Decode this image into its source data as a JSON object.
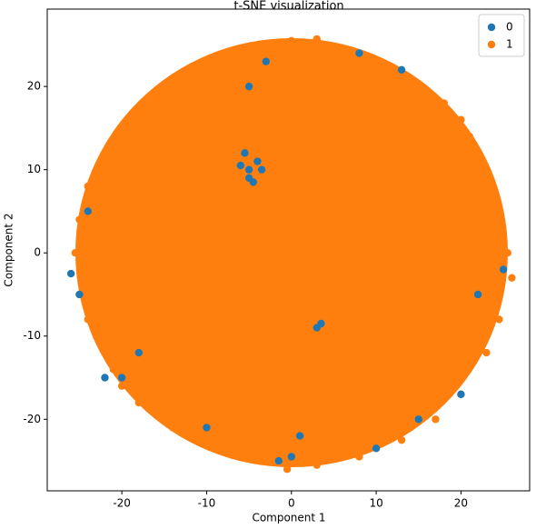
{
  "chart_data": {
    "type": "scatter",
    "title": "t-SNE visualization",
    "x_label": "Component 1",
    "y_label": "Component 2",
    "xlim": [
      -28.8,
      28.1
    ],
    "ylim": [
      -28.6,
      29.3
    ],
    "xticks": [
      -20,
      -10,
      0,
      10,
      20
    ],
    "yticks": [
      -20,
      -10,
      0,
      10,
      20
    ],
    "legend": "upper right",
    "series": [
      {
        "name": "0",
        "color": "#1f77b4",
        "x": [
          -5,
          -4,
          -6,
          -5,
          -3.5,
          -5.5,
          -4.5,
          3,
          3.5,
          -26,
          -25,
          -22,
          -20,
          0,
          -1.5,
          10,
          15,
          25,
          20,
          13,
          8,
          -3,
          -5,
          1,
          -10,
          -18,
          -24,
          22
        ],
        "y": [
          10,
          11,
          10.5,
          9,
          10,
          12,
          8.5,
          -9,
          -8.5,
          -2.5,
          -5,
          -15,
          -15,
          -24.5,
          -25,
          -23.5,
          -20,
          -2,
          -17,
          22,
          24,
          23,
          20,
          -22,
          -21,
          -12,
          5,
          -5
        ]
      },
      {
        "name": "1",
        "color": "#ff7f0e",
        "x": [
          0,
          5,
          10,
          14,
          18,
          21,
          23,
          24.5,
          25.5,
          26,
          24.5,
          23,
          20,
          17,
          13,
          8,
          3,
          -0.5,
          -5,
          -10,
          -14,
          -18,
          -21,
          -23,
          -25,
          -25.5,
          -25,
          -24,
          -22,
          -19,
          -16,
          -12,
          -8,
          -3,
          3,
          -17,
          24,
          -24,
          20,
          -20,
          0,
          10,
          -10,
          5,
          -15,
          15
        ],
        "y": [
          25.5,
          24.5,
          23,
          21,
          18,
          14,
          10,
          5,
          0,
          -3,
          -8,
          -12,
          -17,
          -20,
          -22.5,
          -24.5,
          -25.5,
          -26,
          -24.5,
          -23,
          -21,
          -18,
          -14,
          -10,
          -5,
          0,
          4,
          8,
          12,
          16,
          19,
          22,
          24,
          25,
          25.7,
          17.5,
          7,
          -8,
          16,
          -16,
          0,
          5,
          -5,
          -15,
          5,
          -5
        ]
      }
    ]
  }
}
